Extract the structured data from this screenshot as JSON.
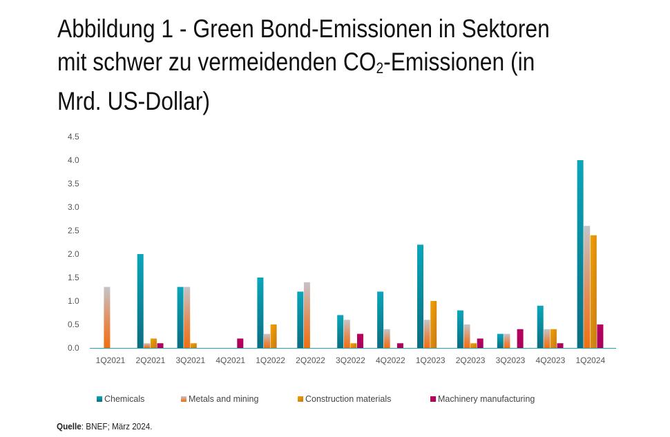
{
  "title": {
    "line1": "Abbildung 1 - Green Bond-Emissionen in Sektoren",
    "line2_pre": "mit schwer zu vermeidenden CO",
    "line2_sub": "2",
    "line2_post": "-Emissionen (in",
    "line3": "Mrd. US-Dollar)"
  },
  "source": {
    "label": "Quelle",
    "text": ": BNEF; März 2024."
  },
  "chart_data": {
    "type": "bar",
    "title": "Green Bond-Emissionen in Sektoren mit schwer zu vermeidenden CO2-Emissionen (in Mrd. US-Dollar)",
    "xlabel": "",
    "ylabel": "",
    "ylim": [
      0,
      4.5
    ],
    "yticks": [
      "0.0",
      "0.5",
      "1.0",
      "1.5",
      "2.0",
      "2.5",
      "3.0",
      "3.5",
      "4.0",
      "4.5"
    ],
    "grid": false,
    "legend_position": "bottom",
    "categories": [
      "1Q2021",
      "2Q2021",
      "3Q2021",
      "4Q2021",
      "1Q2022",
      "2Q2022",
      "3Q2022",
      "4Q2022",
      "1Q2023",
      "2Q2023",
      "3Q2023",
      "4Q2023",
      "1Q2024"
    ],
    "series": [
      {
        "name": "Chemicals",
        "color": "#0a9fb5",
        "values": [
          0,
          2.0,
          1.3,
          0,
          1.5,
          1.2,
          0.7,
          1.2,
          2.2,
          0.8,
          0.3,
          0.9,
          4.0
        ]
      },
      {
        "name": "Metals and mining",
        "color": "#bfbfc4",
        "values": [
          1.3,
          0.1,
          1.3,
          0,
          0.3,
          1.4,
          0.6,
          0.4,
          0.6,
          0.5,
          0.3,
          0.4,
          2.6
        ]
      },
      {
        "name": "Construction materials",
        "color": "#f09a10",
        "values": [
          0,
          0.2,
          0.1,
          0,
          0.5,
          0,
          0.1,
          0,
          1.0,
          0.1,
          0,
          0.4,
          2.4
        ]
      },
      {
        "name": "Machinery manufacturing",
        "color": "#b4005e",
        "values": [
          0,
          0.1,
          0,
          0.2,
          0,
          0,
          0.3,
          0.1,
          0,
          0.2,
          0.4,
          0.1,
          0.5
        ]
      }
    ]
  }
}
